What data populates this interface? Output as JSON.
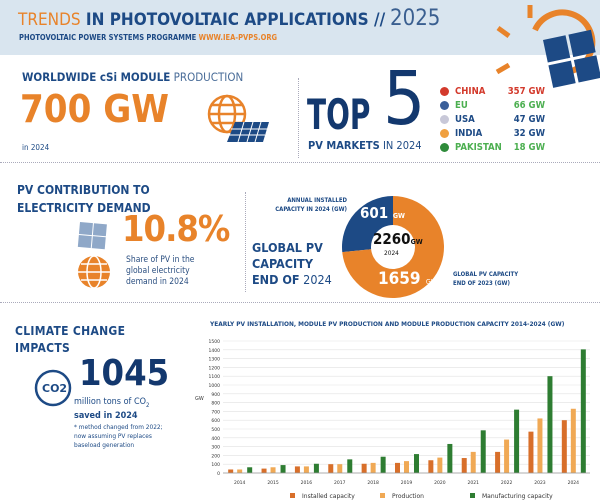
{
  "header": {
    "title_accent": "TRENDS",
    "title_rest": " IN PHOTOVOLTAIC APPLICATIONS //",
    "year": "2025",
    "programme": "PHOTOVOLTAIC POWER SYSTEMS PROGRAMME",
    "url": "WWW.IEA-PVPS.ORG"
  },
  "production": {
    "title_bold": "WORLDWIDE cSi MODULE",
    "title_light": " PRODUCTION",
    "value": "700 GW",
    "year": "in 2024"
  },
  "top5": {
    "top": "TOP",
    "five": "5",
    "sub_bold": "PV MARKETS",
    "sub_light": " IN 2024",
    "markets": [
      {
        "name": "CHINA",
        "value": "357 GW",
        "color": "#d33a2c"
      },
      {
        "name": "EU",
        "value": "66 GW",
        "color": "#4caf50"
      },
      {
        "name": "USA",
        "value": "47 GW",
        "color": "#1d4a85"
      },
      {
        "name": "INDIA",
        "value": "32 GW",
        "color": "#1d4a85"
      },
      {
        "name": "PAKISTAN",
        "value": "18 GW",
        "color": "#4caf50"
      }
    ]
  },
  "contribution": {
    "title1": "PV CONTRIBUTION TO",
    "title2": "ELECTRICITY DEMAND",
    "value": "10.8%",
    "desc1": "Share of PV in the",
    "desc2": "global electricity",
    "desc3": "demand in 2024"
  },
  "capacity": {
    "label1": "GLOBAL PV",
    "label2": "CAPACITY",
    "label3_bold": "END OF",
    "label3_light": " 2024",
    "annual_label1": "ANNUAL INSTALLED",
    "annual_label2": "CAPACITY IN 2024 (GW)",
    "annual_value": "601",
    "unit": "GW",
    "total_value": "2260",
    "total_year": "2024",
    "prev_value": "1659",
    "prev_label1": "GLOBAL PV CAPACITY",
    "prev_label2": "END OF 2023 (GW)",
    "colors": {
      "annual": "#1d4a85",
      "previous": "#e8832a"
    },
    "annual_gw": 601,
    "previous_gw": 1659
  },
  "climate": {
    "title1": "CLIMATE CHANGE",
    "title2": "IMPACTS",
    "co2_icon": "CO2",
    "value": "1045",
    "line1": "million tons of CO",
    "line1_sub": "2",
    "line2": "saved in 2024",
    "note1": "* method changed from 2022;",
    "note2": "now assuming PV replaces",
    "note3": "baseload generation"
  },
  "chart_data": {
    "type": "bar",
    "title": "YEARLY PV INSTALLATION, MODULE PV PRODUCTION AND MODULE PRODUCTION CAPACITY 2014-2024 (GW)",
    "ylabel": "GW",
    "xlabel": "",
    "ylim": [
      0,
      1500
    ],
    "yticks": [
      0,
      100,
      200,
      300,
      400,
      500,
      600,
      700,
      800,
      900,
      1000,
      1100,
      1200,
      1300,
      1400,
      1500
    ],
    "grid": true,
    "legend": "bottom",
    "categories": [
      "2014",
      "2015",
      "2016",
      "2017",
      "2018",
      "2019",
      "2020",
      "2021",
      "2022",
      "2023",
      "2024"
    ],
    "series": [
      {
        "name": "Installed capacity",
        "color": "#d86f2a",
        "values": [
          40,
          50,
          75,
          100,
          105,
          115,
          145,
          170,
          240,
          470,
          600
        ]
      },
      {
        "name": "Production",
        "color": "#f0a955",
        "values": [
          40,
          65,
          75,
          100,
          115,
          135,
          175,
          240,
          380,
          620,
          730
        ]
      },
      {
        "name": "Manufacturing capacity",
        "color": "#2e7d32",
        "values": [
          65,
          90,
          105,
          155,
          185,
          215,
          330,
          485,
          720,
          1100,
          1405
        ]
      }
    ]
  }
}
